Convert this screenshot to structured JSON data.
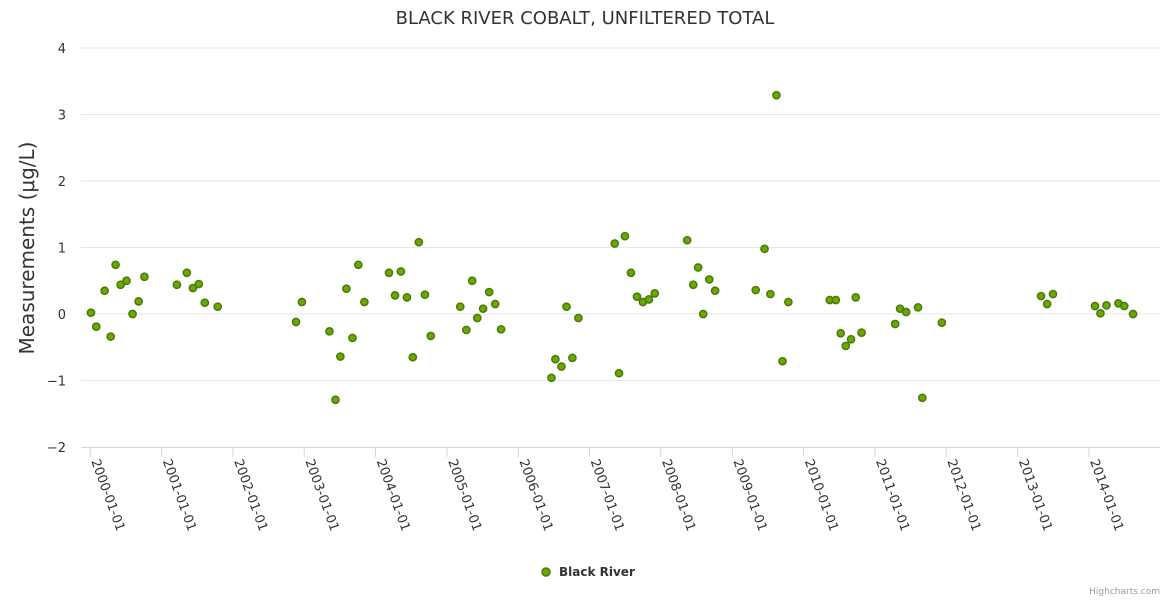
{
  "chart_data": {
    "type": "scatter",
    "title": "BLACK RIVER COBALT, UNFILTERED TOTAL",
    "ylabel": "Measurements (μg/L)",
    "xlabel": "",
    "ylim": [
      -2,
      4
    ],
    "yticks": [
      -2,
      -1,
      0,
      1,
      2,
      3,
      4
    ],
    "ytick_labels": [
      "−2",
      "−1",
      "0",
      "1",
      "2",
      "3",
      "4"
    ],
    "xlim": [
      "1999-11-15",
      "2014-12-31"
    ],
    "xticks": [
      "2000-01-01",
      "2001-01-01",
      "2002-01-01",
      "2003-01-01",
      "2004-01-01",
      "2005-01-01",
      "2006-01-01",
      "2007-01-01",
      "2008-01-01",
      "2009-01-01",
      "2010-01-01",
      "2011-01-01",
      "2012-01-01",
      "2013-01-01",
      "2014-01-01"
    ],
    "grid": true,
    "legend_position": "bottom-center",
    "series": [
      {
        "name": "Black River",
        "color": "#6aa806",
        "stroke": "#4a7a05",
        "points": [
          [
            "2000-01-05",
            0.02
          ],
          [
            "2000-02-01",
            -0.19
          ],
          [
            "2000-03-15",
            0.35
          ],
          [
            "2000-04-15",
            -0.34
          ],
          [
            "2000-05-10",
            0.74
          ],
          [
            "2000-06-05",
            0.44
          ],
          [
            "2000-07-05",
            0.5
          ],
          [
            "2000-08-05",
            0.0
          ],
          [
            "2000-09-05",
            0.19
          ],
          [
            "2000-10-05",
            0.56
          ],
          [
            "2001-03-20",
            0.44
          ],
          [
            "2001-05-10",
            0.62
          ],
          [
            "2001-06-10",
            0.39
          ],
          [
            "2001-07-10",
            0.45
          ],
          [
            "2001-08-10",
            0.17
          ],
          [
            "2001-10-15",
            0.11
          ],
          [
            "2002-11-20",
            -0.12
          ],
          [
            "2002-12-20",
            0.18
          ],
          [
            "2003-05-10",
            -0.26
          ],
          [
            "2003-06-10",
            -1.29
          ],
          [
            "2003-07-05",
            -0.64
          ],
          [
            "2003-08-05",
            0.38
          ],
          [
            "2003-09-05",
            -0.36
          ],
          [
            "2003-10-05",
            0.74
          ],
          [
            "2003-11-05",
            0.18
          ],
          [
            "2004-03-10",
            0.62
          ],
          [
            "2004-04-10",
            0.28
          ],
          [
            "2004-05-10",
            0.64
          ],
          [
            "2004-06-10",
            0.25
          ],
          [
            "2004-07-10",
            -0.65
          ],
          [
            "2004-08-10",
            1.08
          ],
          [
            "2004-09-10",
            0.29
          ],
          [
            "2004-10-10",
            -0.33
          ],
          [
            "2005-03-10",
            0.11
          ],
          [
            "2005-04-10",
            -0.24
          ],
          [
            "2005-05-10",
            0.5
          ],
          [
            "2005-06-05",
            -0.06
          ],
          [
            "2005-07-05",
            0.08
          ],
          [
            "2005-08-05",
            0.33
          ],
          [
            "2005-09-05",
            0.15
          ],
          [
            "2005-10-05",
            -0.23
          ],
          [
            "2006-06-20",
            -0.96
          ],
          [
            "2006-07-10",
            -0.68
          ],
          [
            "2006-08-10",
            -0.79
          ],
          [
            "2006-09-05",
            0.11
          ],
          [
            "2006-10-05",
            -0.66
          ],
          [
            "2006-11-05",
            -0.06
          ],
          [
            "2007-05-10",
            1.06
          ],
          [
            "2007-06-01",
            -0.89
          ],
          [
            "2007-07-01",
            1.17
          ],
          [
            "2007-08-01",
            0.62
          ],
          [
            "2007-09-01",
            0.26
          ],
          [
            "2007-10-01",
            0.18
          ],
          [
            "2007-11-01",
            0.22
          ],
          [
            "2007-12-01",
            0.31
          ],
          [
            "2008-05-15",
            1.11
          ],
          [
            "2008-06-15",
            0.44
          ],
          [
            "2008-07-10",
            0.7
          ],
          [
            "2008-08-05",
            0.0
          ],
          [
            "2008-09-05",
            0.52
          ],
          [
            "2008-10-05",
            0.35
          ],
          [
            "2009-05-01",
            0.36
          ],
          [
            "2009-06-15",
            0.98
          ],
          [
            "2009-07-15",
            0.3
          ],
          [
            "2009-08-15",
            3.29
          ],
          [
            "2009-09-15",
            -0.71
          ],
          [
            "2009-10-15",
            0.18
          ],
          [
            "2010-05-15",
            0.21
          ],
          [
            "2010-06-15",
            0.21
          ],
          [
            "2010-07-10",
            -0.29
          ],
          [
            "2010-08-05",
            -0.48
          ],
          [
            "2010-09-01",
            -0.38
          ],
          [
            "2010-09-25",
            0.25
          ],
          [
            "2010-10-25",
            -0.28
          ],
          [
            "2011-04-15",
            -0.15
          ],
          [
            "2011-05-10",
            0.08
          ],
          [
            "2011-06-10",
            0.03
          ],
          [
            "2011-08-10",
            0.1
          ],
          [
            "2011-09-01",
            -1.26
          ],
          [
            "2011-12-10",
            -0.13
          ],
          [
            "2013-05-01",
            0.27
          ],
          [
            "2013-06-01",
            0.15
          ],
          [
            "2013-07-01",
            0.3
          ],
          [
            "2014-02-01",
            0.12
          ],
          [
            "2014-03-01",
            0.01
          ],
          [
            "2014-04-01",
            0.13
          ],
          [
            "2014-06-01",
            0.16
          ],
          [
            "2014-07-01",
            0.12
          ],
          [
            "2014-08-15",
            0.0
          ]
        ]
      }
    ]
  },
  "credits": "Highcharts.com"
}
